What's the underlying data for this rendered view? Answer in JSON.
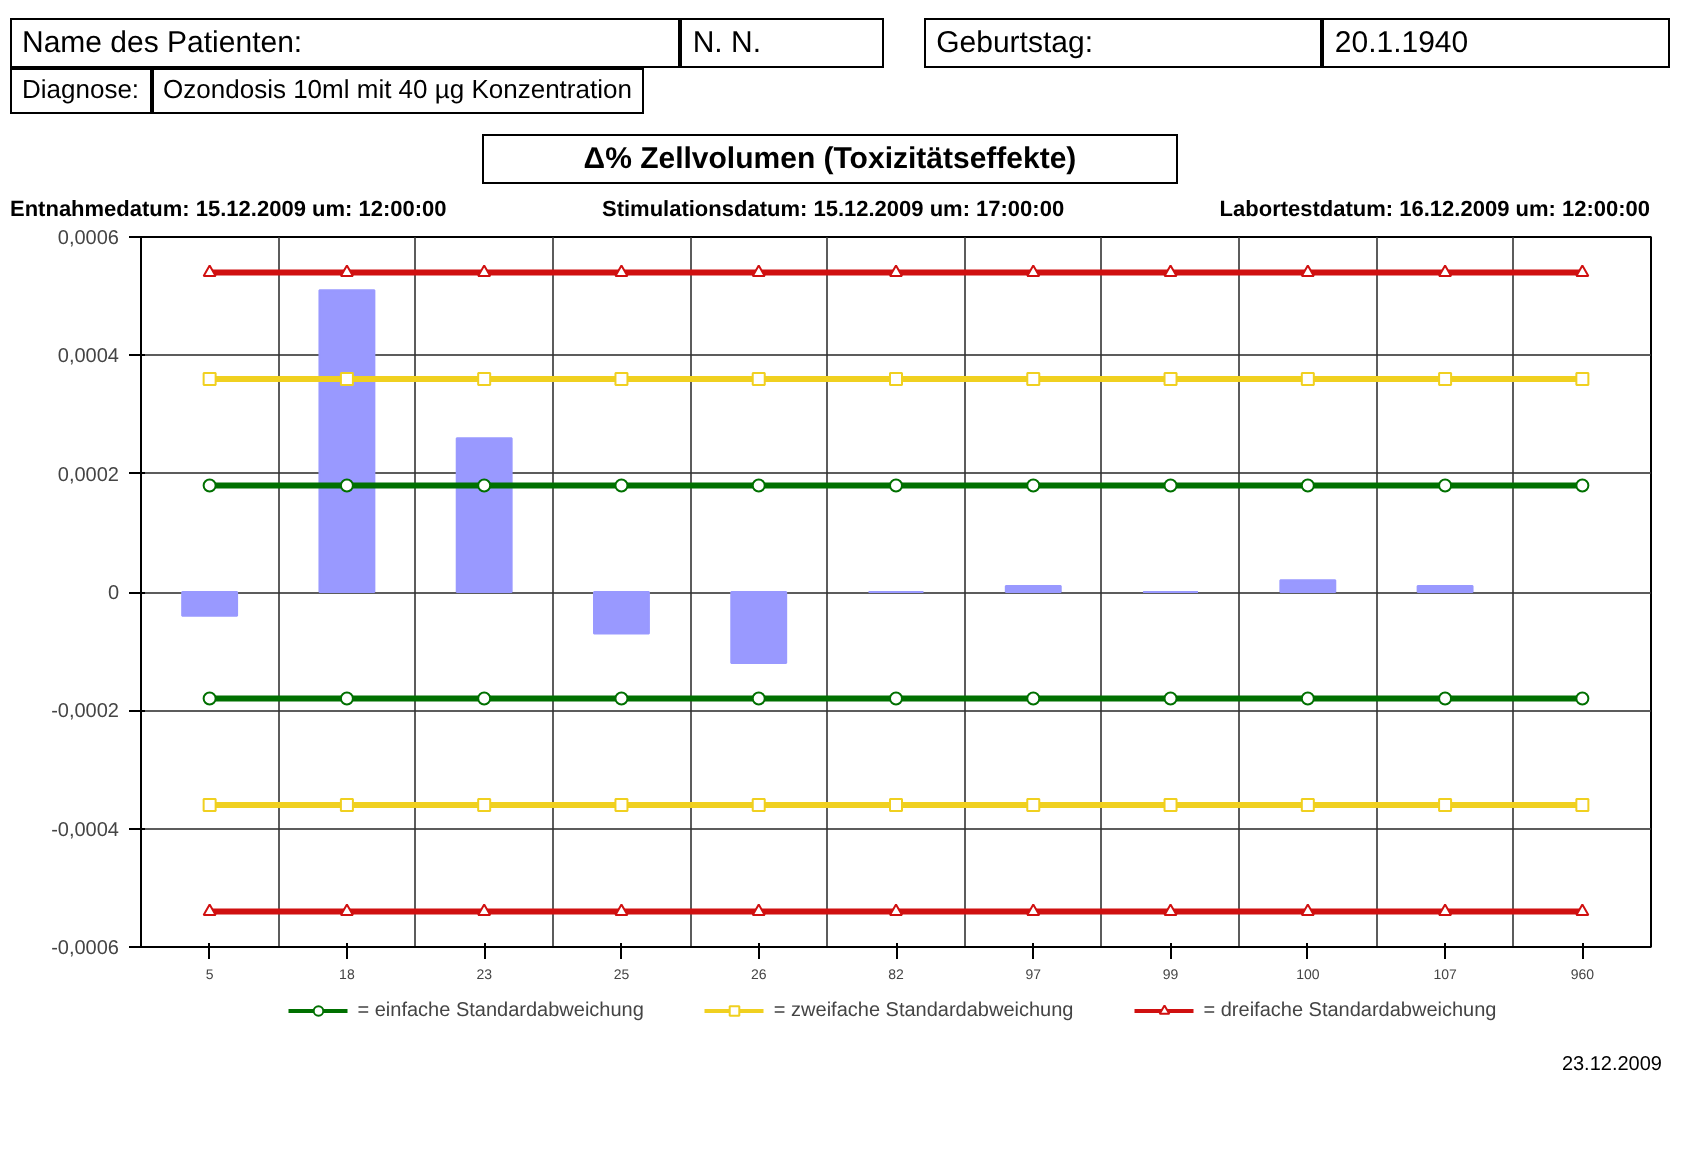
{
  "chart_data": {
    "type": "bar",
    "title": "Δ% Zellvolumen (Toxizitätseffekte)",
    "categories": [
      "5",
      "18",
      "23",
      "25",
      "26",
      "82",
      "97",
      "99",
      "100",
      "107",
      "960"
    ],
    "series": [
      {
        "color": "#9999ff",
        "values": [
          -4e-05,
          0.00051,
          0.00026,
          -7e-05,
          -0.00012,
          0,
          1e-05,
          0,
          2e-05,
          1e-05,
          null
        ]
      },
      {
        "type": "line",
        "name": "= einfache Standardabweichung",
        "color": "#007000",
        "marker": "circle",
        "values": [
          0.00018,
          0.00018,
          0.00018,
          0.00018,
          0.00018,
          0.00018,
          0.00018,
          0.00018,
          0.00018,
          0.00018,
          0.00018
        ]
      },
      {
        "type": "line",
        "name": "= zweifache Standardabweichung",
        "color": "#f0d020",
        "marker": "square",
        "values": [
          0.00036,
          0.00036,
          0.00036,
          0.00036,
          0.00036,
          0.00036,
          0.00036,
          0.00036,
          0.00036,
          0.00036,
          0.00036
        ]
      },
      {
        "type": "line",
        "name": "= dreifache Standardabweichung",
        "color": "#d01010",
        "marker": "triangle",
        "values": [
          0.00054,
          0.00054,
          0.00054,
          0.00054,
          0.00054,
          0.00054,
          0.00054,
          0.00054,
          0.00054,
          0.00054,
          0.00054
        ]
      },
      {
        "type": "line",
        "color": "#007000",
        "marker": "circle",
        "values": [
          -0.00018,
          -0.00018,
          -0.00018,
          -0.00018,
          -0.00018,
          -0.00018,
          -0.00018,
          -0.00018,
          -0.00018,
          -0.00018,
          -0.00018
        ]
      },
      {
        "type": "line",
        "color": "#f0d020",
        "marker": "square",
        "values": [
          -0.00036,
          -0.00036,
          -0.00036,
          -0.00036,
          -0.00036,
          -0.00036,
          -0.00036,
          -0.00036,
          -0.00036,
          -0.00036,
          -0.00036
        ]
      },
      {
        "type": "line",
        "color": "#d01010",
        "marker": "triangle",
        "values": [
          -0.00054,
          -0.00054,
          -0.00054,
          -0.00054,
          -0.00054,
          -0.00054,
          -0.00054,
          -0.00054,
          -0.00054,
          -0.00054,
          -0.00054
        ]
      }
    ],
    "ylim": [
      -0.0006,
      0.0006
    ],
    "yticks": [
      {
        "value": -0.0006,
        "label": "-0,0006"
      },
      {
        "value": -0.0004,
        "label": "-0,0004"
      },
      {
        "value": -0.0002,
        "label": "-0,0002"
      },
      0,
      {
        "value": 0.0002,
        "label": "0,0002"
      },
      {
        "value": 0.0004,
        "label": "0,0004"
      },
      {
        "value": 0.0006,
        "label": "0,0006"
      }
    ],
    "grid": true,
    "legend": "bottom",
    "annotations": [
      "Name des Patienten:",
      "N. N.",
      "Geburtstag:",
      "20.1.1940",
      "Diagnose:",
      "Ozondosis 10ml mit 40 µg Konzentration",
      "Entnahmedatum: 15.12.2009 um: 12:00:00",
      "Stimulationsdatum: 15.12.2009 um: 17:00:00",
      "Labortestdatum: 16.12.2009 um: 12:00:00",
      "23.12.2009"
    ]
  }
}
